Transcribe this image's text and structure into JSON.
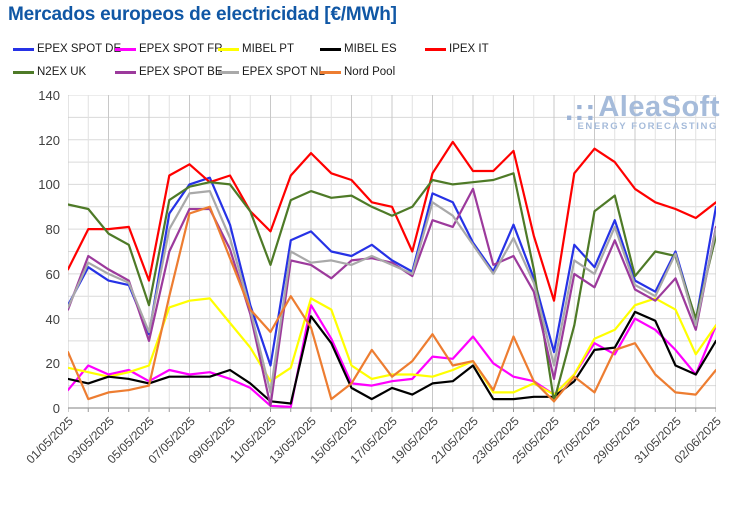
{
  "title": "Mercados europeos de electricidad [€/MWh]",
  "watermark": {
    "dots": ".::",
    "brand": "AleaSoft",
    "tagline": "ENERGY FORECASTING"
  },
  "chart_data": {
    "type": "line",
    "title": "Mercados europeos de electricidad [€/MWh]",
    "ylim": [
      0,
      140
    ],
    "y_ticks": [
      0,
      20,
      40,
      60,
      80,
      100,
      120,
      140
    ],
    "grid": true,
    "legend_position": "top",
    "x": [
      "01/05/2025",
      "02/05/2025",
      "03/05/2025",
      "04/05/2025",
      "05/05/2025",
      "06/05/2025",
      "07/05/2025",
      "08/05/2025",
      "09/05/2025",
      "10/05/2025",
      "11/05/2025",
      "12/05/2025",
      "13/05/2025",
      "14/05/2025",
      "15/05/2025",
      "16/05/2025",
      "17/05/2025",
      "18/05/2025",
      "19/05/2025",
      "20/05/2025",
      "21/05/2025",
      "22/05/2025",
      "23/05/2025",
      "24/05/2025",
      "25/05/2025",
      "26/05/2025",
      "27/05/2025",
      "28/05/2025",
      "29/05/2025",
      "30/05/2025",
      "31/05/2025",
      "01/06/2025",
      "02/06/2025"
    ],
    "x_tick_labels": [
      "01/05/2025",
      "03/05/2025",
      "05/05/2025",
      "07/05/2025",
      "09/05/2025",
      "11/05/2025",
      "13/05/2025",
      "15/05/2025",
      "17/05/2025",
      "19/05/2025",
      "21/05/2025",
      "23/05/2025",
      "25/05/2025",
      "27/05/2025",
      "29/05/2025",
      "31/05/2025",
      "02/06/2025"
    ],
    "series": [
      {
        "name": "EPEX SPOT DE",
        "color": "#2632E6",
        "values": [
          46,
          63,
          57,
          55,
          33,
          87,
          100,
          103,
          82,
          46,
          19,
          75,
          79,
          70,
          68,
          73,
          66,
          61,
          96,
          92,
          74,
          61,
          82,
          58,
          25,
          73,
          63,
          84,
          57,
          52,
          70,
          39,
          90
        ]
      },
      {
        "name": "EPEX SPOT FR",
        "color": "#FF00FF",
        "values": [
          8,
          19,
          15,
          17,
          12,
          17,
          15,
          16,
          13,
          9,
          1,
          0.5,
          46,
          31,
          11,
          10,
          12,
          13,
          23,
          22,
          32,
          20,
          14,
          12,
          6,
          15,
          29,
          24,
          40,
          35,
          26,
          15,
          37
        ]
      },
      {
        "name": "MIBEL PT",
        "color": "#FFFF00",
        "values": [
          18,
          16,
          14,
          16,
          19,
          45,
          48,
          49,
          38,
          27,
          12,
          18,
          49,
          44,
          19,
          13,
          15,
          15,
          14,
          17,
          21,
          7,
          7,
          11,
          6,
          15,
          31,
          35,
          46,
          49,
          44,
          24,
          37
        ]
      },
      {
        "name": "MIBEL ES",
        "color": "#000000",
        "values": [
          13,
          11,
          14,
          13,
          11,
          14,
          14,
          14,
          17,
          11,
          3,
          2,
          41,
          29,
          9,
          4,
          9,
          6,
          11,
          12,
          19,
          4,
          4,
          5,
          5,
          12,
          26,
          27,
          43,
          39,
          19,
          15,
          30
        ]
      },
      {
        "name": "IPEX IT",
        "color": "#FF0000",
        "values": [
          62,
          80,
          80,
          81,
          57,
          104,
          109,
          101,
          104,
          88,
          79,
          104,
          114,
          105,
          102,
          92,
          90,
          70,
          105,
          119,
          106,
          106,
          115,
          77,
          48,
          105,
          116,
          110,
          98,
          92,
          89,
          85,
          92
        ]
      },
      {
        "name": "N2EX UK",
        "color": "#4E7A27",
        "values": [
          91,
          89,
          78,
          73,
          46,
          93,
          99,
          101,
          100,
          88,
          64,
          93,
          97,
          94,
          95,
          90,
          86,
          90,
          102,
          100,
          101,
          102,
          105,
          62,
          3,
          37,
          88,
          95,
          59,
          70,
          68,
          40,
          77
        ]
      },
      {
        "name": "EPEX SPOT BE",
        "color": "#9C3A9C",
        "values": [
          44,
          68,
          62,
          57,
          30,
          70,
          89,
          89,
          71,
          42,
          1,
          66,
          64,
          58,
          66,
          67,
          65,
          59,
          84,
          81,
          98,
          64,
          68,
          52,
          13,
          60,
          54,
          75,
          53,
          48,
          58,
          35,
          81
        ]
      },
      {
        "name": "EPEX SPOT NL",
        "color": "#A9A9A9",
        "values": [
          45,
          65,
          60,
          56,
          34,
          80,
          96,
          97,
          76,
          44,
          7,
          70,
          65,
          66,
          64,
          68,
          64,
          60,
          92,
          86,
          73,
          60,
          76,
          56,
          19,
          66,
          60,
          81,
          55,
          50,
          69,
          37,
          80
        ]
      },
      {
        "name": "Nord Pool",
        "color": "#ED7D31",
        "values": [
          25,
          4,
          7,
          8,
          10,
          50,
          87,
          90,
          67,
          44,
          34,
          50,
          36,
          4,
          11,
          26,
          14,
          21,
          33,
          19,
          21,
          8,
          32,
          12,
          3,
          14,
          7,
          26,
          29,
          15,
          7,
          6,
          17
        ]
      }
    ],
    "legend_rows": [
      [
        "EPEX SPOT DE",
        "EPEX SPOT FR",
        "MIBEL PT",
        "MIBEL ES",
        "IPEX IT"
      ],
      [
        "N2EX UK",
        "EPEX SPOT BE",
        "EPEX SPOT NL",
        "Nord Pool"
      ]
    ],
    "legend_col_x": [
      13,
      115,
      218,
      320,
      425
    ]
  }
}
